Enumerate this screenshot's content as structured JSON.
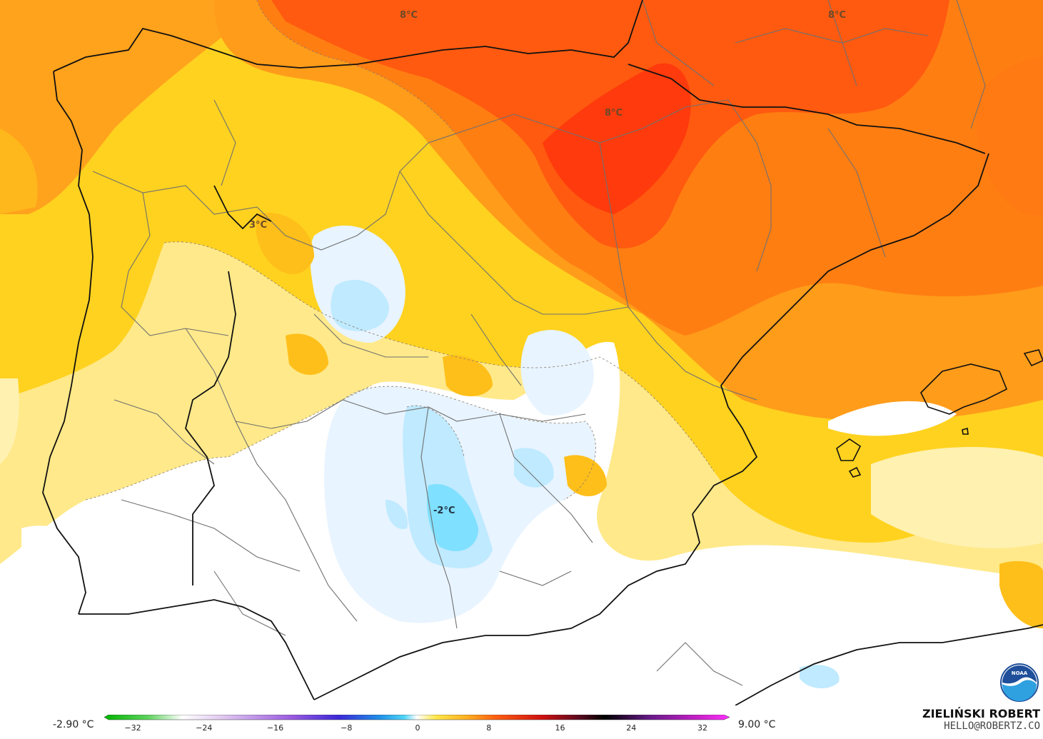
{
  "map": {
    "labels": [
      {
        "name": "label-north-8",
        "text": "8°C"
      },
      {
        "name": "label-northeast-8",
        "text": "8°C"
      },
      {
        "name": "label-ebro-8",
        "text": "8°C"
      },
      {
        "name": "label-leon-3",
        "text": "3°C"
      },
      {
        "name": "label-south-minus2",
        "text": "-2°C"
      }
    ]
  },
  "legend": {
    "min_value": "-2.90 °C",
    "max_value": "9.00 °C",
    "ticks": [
      "−32",
      "−24",
      "−16",
      "−8",
      "0",
      "8",
      "16",
      "24",
      "32"
    ]
  },
  "credit": {
    "name": "ZIELIŃSKI ROBERT",
    "email": "HELLO@ROBERTZ.CO"
  },
  "logo": {
    "text": "NOAA",
    "icon": "noaa-logo"
  },
  "colors": {
    "warm_red": "#ff4e0f",
    "orange": "#ff9a1a",
    "yellow": "#ffd800",
    "light_yellow": "#fff3b0",
    "cold_blue": "#7fe0ff"
  }
}
